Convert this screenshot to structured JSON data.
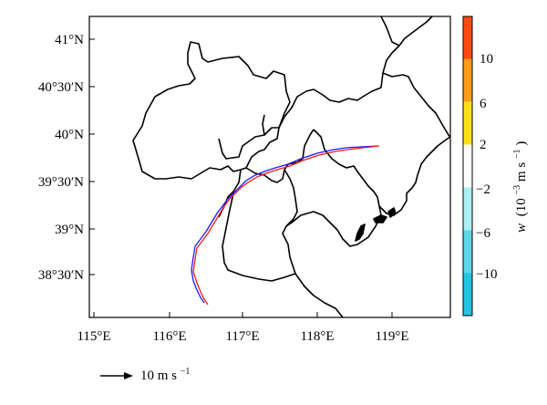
{
  "lat_ticks": [
    "41°N",
    "40°30′N",
    "40°N",
    "39°30′N",
    "39°N",
    "38°30′N"
  ],
  "lon_ticks": [
    "115°E",
    "116°E",
    "117°E",
    "118°E",
    "119°E"
  ],
  "colorbar": {
    "title_var": "w",
    "title_units": "(10",
    "title_exp": "−3",
    "title_tail": " m s",
    "title_tail_exp": "−1",
    "title_close": ")",
    "tick_labels": [
      "10",
      "6",
      "2",
      "−2",
      "−6",
      "−10"
    ],
    "segments": [
      {
        "from": 10,
        "to": 14,
        "color": "#ff4a12"
      },
      {
        "from": 6,
        "to": 10,
        "color": "#ff9c1a"
      },
      {
        "from": 2,
        "to": 6,
        "color": "#ffe11a"
      },
      {
        "from": -2,
        "to": 2,
        "color": "#ffffff"
      },
      {
        "from": -6,
        "to": -2,
        "color": "#a9f0f2"
      },
      {
        "from": -10,
        "to": -6,
        "color": "#5bd6e6"
      },
      {
        "from": -14,
        "to": -10,
        "color": "#22c4e4"
      }
    ]
  },
  "vector_key": {
    "label": "10 m s",
    "label_exp": "−1"
  },
  "colors": {
    "track_red": "#ff1a1a",
    "track_blue": "#1a1aff",
    "boundary": "#000000"
  }
}
